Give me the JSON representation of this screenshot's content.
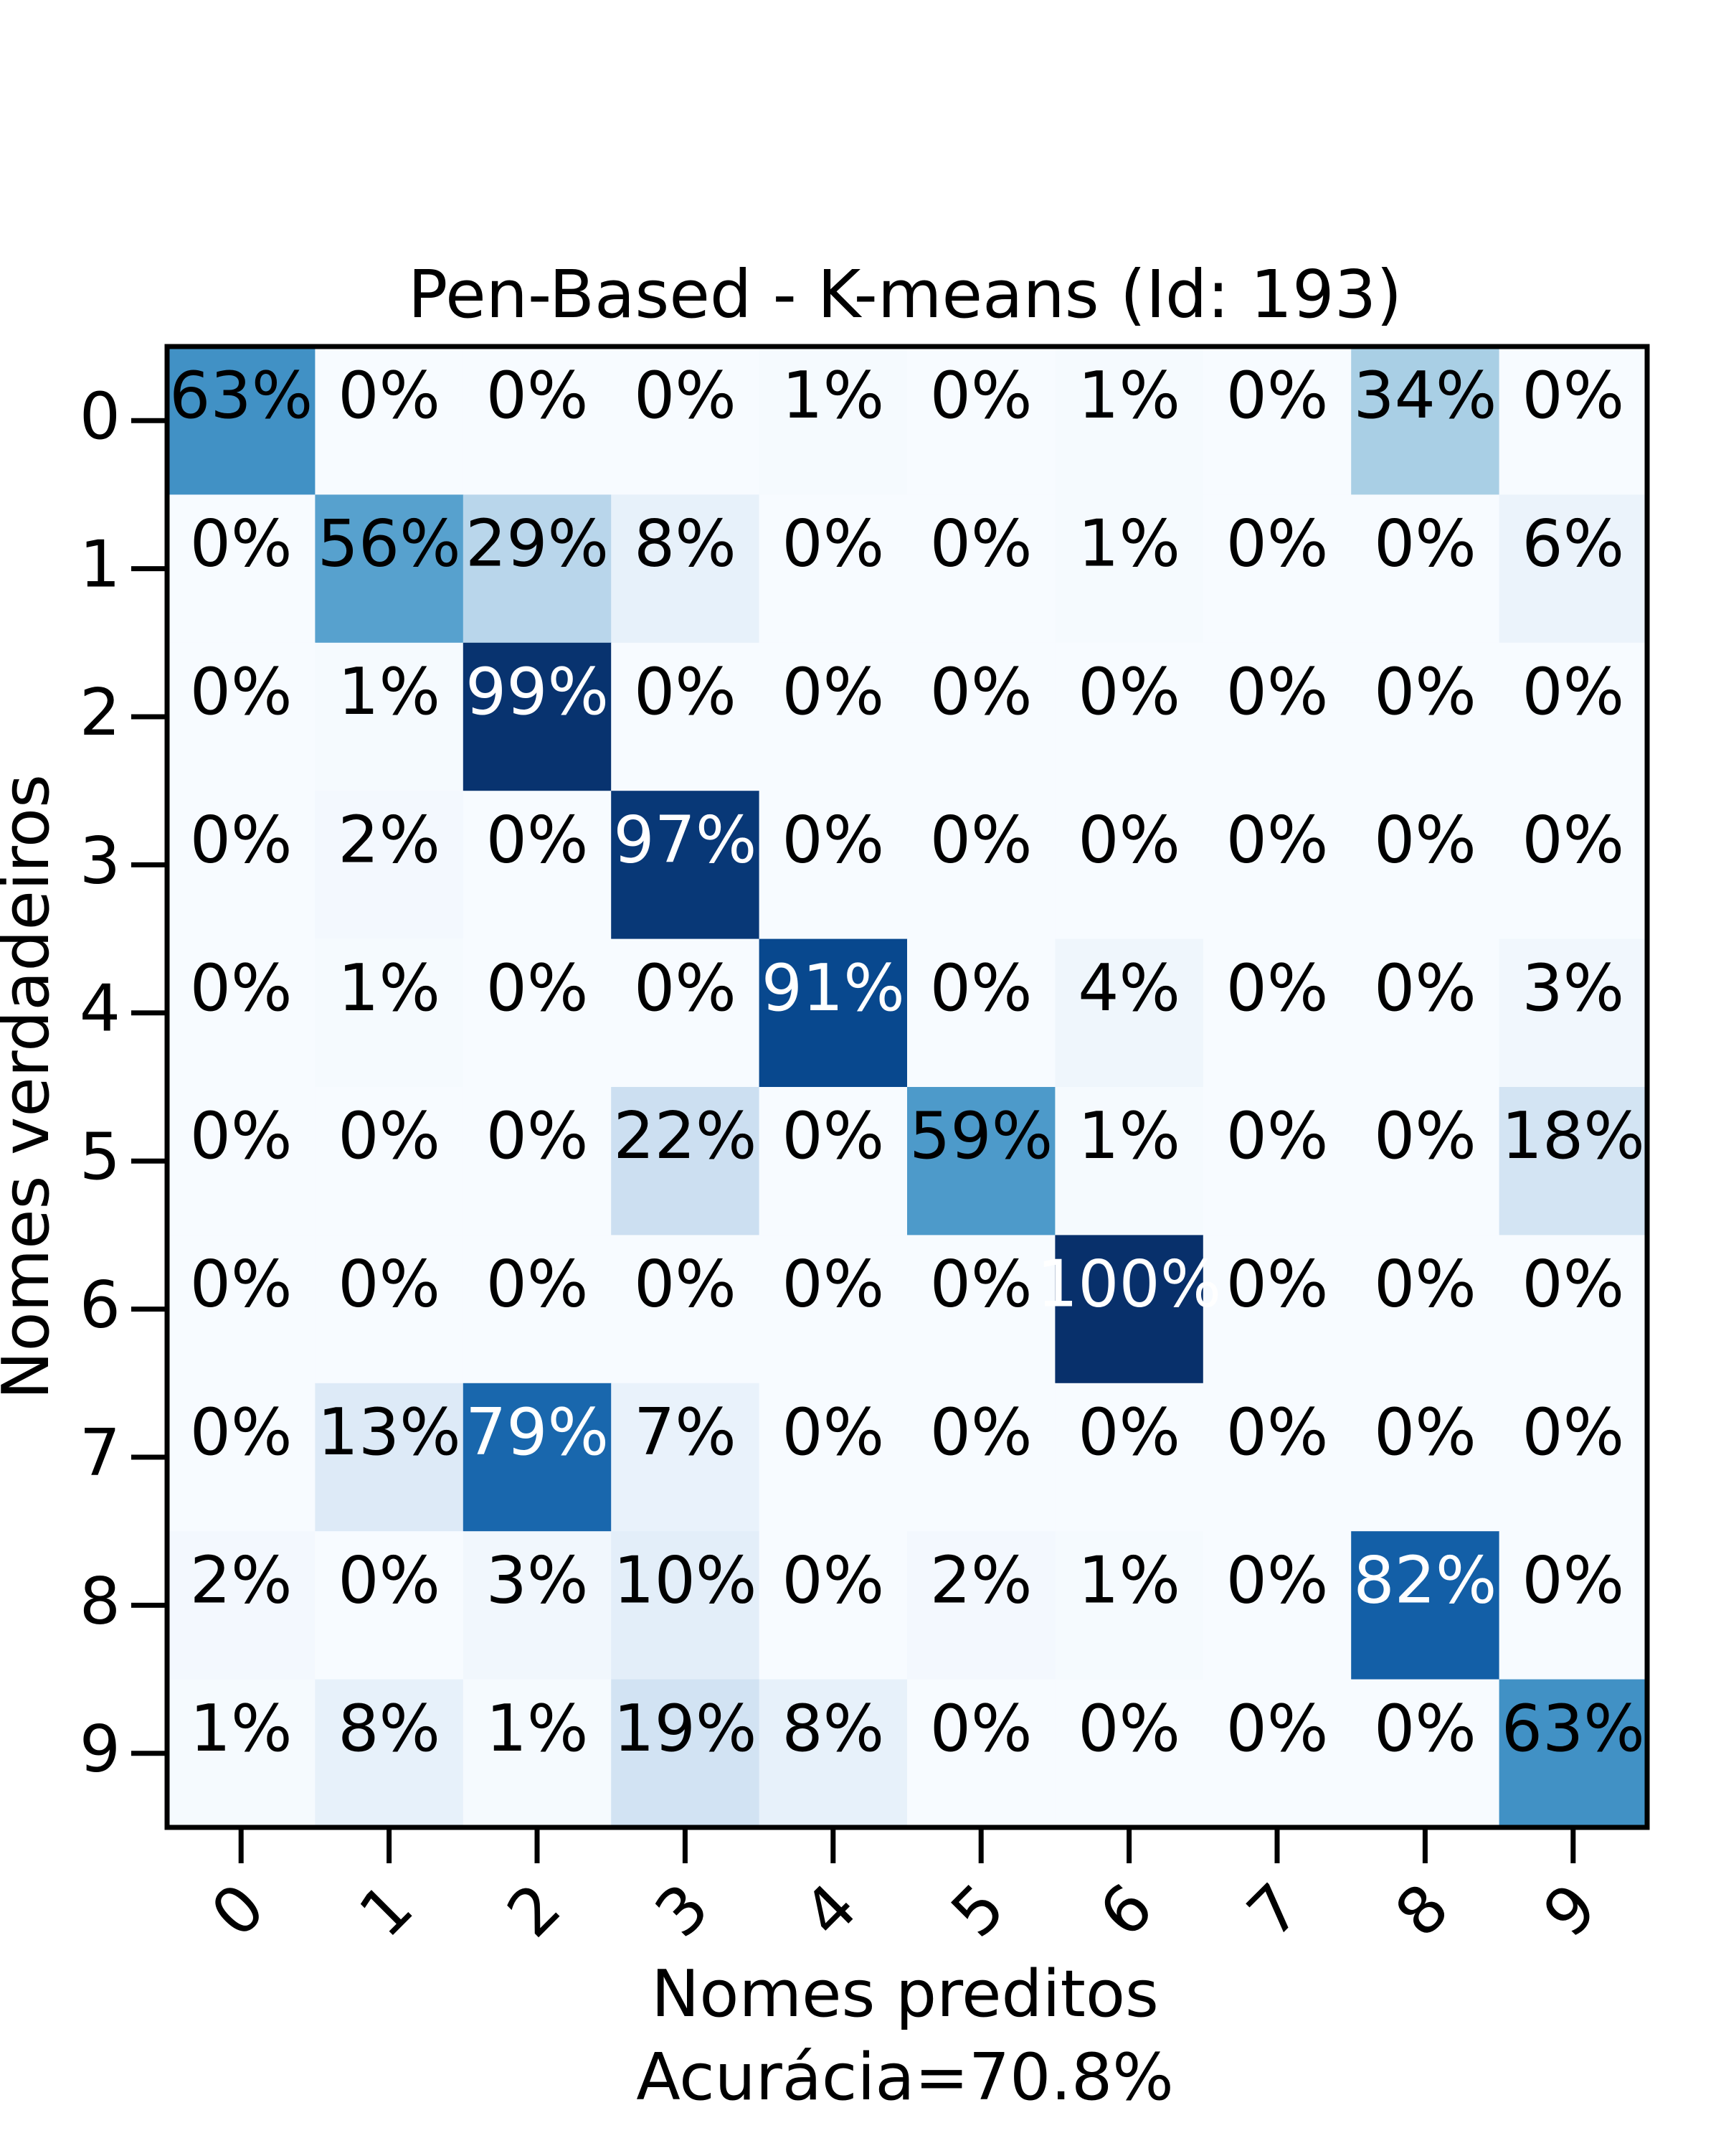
{
  "chart_data": {
    "type": "heatmap",
    "title": "Pen-Based - K-means (Id: 193)",
    "xlabel": "Nomes preditos",
    "xlabel_sub": "Acurácia=70.8%",
    "ylabel": "Nomes verdadeiros",
    "x_categories": [
      "0",
      "1",
      "2",
      "3",
      "4",
      "5",
      "6",
      "7",
      "8",
      "9"
    ],
    "y_categories": [
      "0",
      "1",
      "2",
      "3",
      "4",
      "5",
      "6",
      "7",
      "8",
      "9"
    ],
    "value_format": "percent",
    "colormap": "Blues",
    "colors": {
      "low": "#f7fbff",
      "high": "#08306b",
      "text_dark": "#000000",
      "text_light": "#ffffff"
    },
    "values": [
      [
        63,
        0,
        0,
        0,
        1,
        0,
        1,
        0,
        34,
        0
      ],
      [
        0,
        56,
        29,
        8,
        0,
        0,
        1,
        0,
        0,
        6
      ],
      [
        0,
        1,
        99,
        0,
        0,
        0,
        0,
        0,
        0,
        0
      ],
      [
        0,
        2,
        0,
        97,
        0,
        0,
        0,
        0,
        0,
        0
      ],
      [
        0,
        1,
        0,
        0,
        91,
        0,
        4,
        0,
        0,
        3
      ],
      [
        0,
        0,
        0,
        22,
        0,
        59,
        1,
        0,
        0,
        18
      ],
      [
        0,
        0,
        0,
        0,
        0,
        0,
        100,
        0,
        0,
        0
      ],
      [
        0,
        13,
        79,
        7,
        0,
        0,
        0,
        0,
        0,
        0
      ],
      [
        2,
        0,
        3,
        10,
        0,
        2,
        1,
        0,
        82,
        0
      ],
      [
        1,
        8,
        1,
        19,
        8,
        0,
        0,
        0,
        0,
        63
      ]
    ],
    "vmin": 0,
    "vmax": 100,
    "grid": false
  }
}
